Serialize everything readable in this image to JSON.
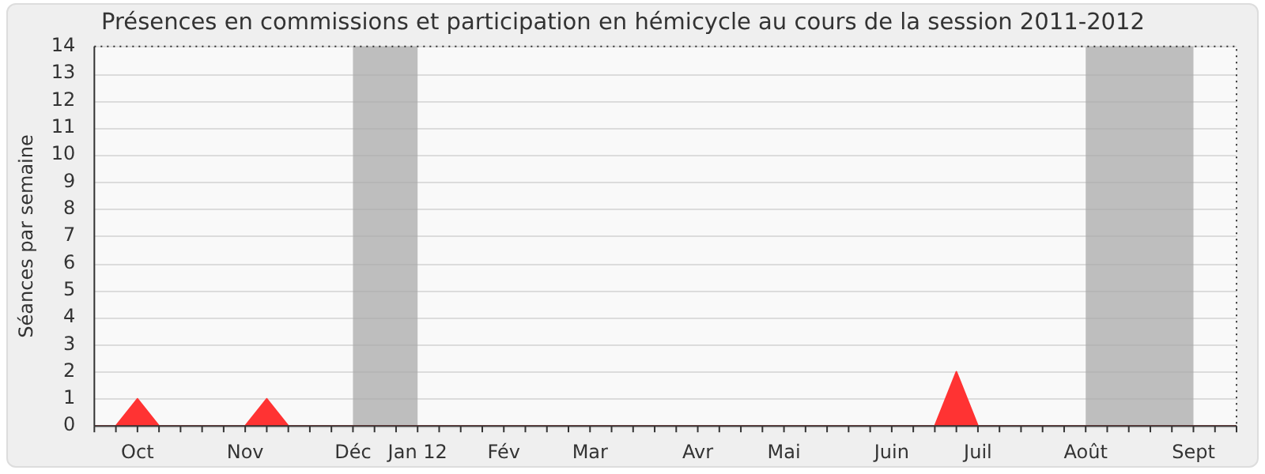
{
  "chart_data": {
    "type": "area",
    "title": "Présences en commissions et participation en hémicycle au cours de la session 2011-2012",
    "ylabel": "Séances par semaine",
    "categories": [
      null,
      null,
      "Oct",
      null,
      null,
      null,
      null,
      "Nov",
      null,
      null,
      null,
      null,
      "Déc",
      null,
      null,
      "Jan 12",
      null,
      null,
      null,
      "Fév",
      null,
      null,
      null,
      "Mar",
      null,
      null,
      null,
      null,
      "Avr",
      null,
      null,
      null,
      "Mai",
      null,
      null,
      null,
      null,
      "Juin",
      null,
      null,
      null,
      "Juil",
      null,
      null,
      null,
      null,
      "Août",
      null,
      null,
      null,
      null,
      "Sept",
      null,
      null
    ],
    "series": [
      {
        "color": "#ff3333",
        "values": [
          0,
          0,
          1,
          0,
          0,
          0,
          0,
          0,
          1,
          0,
          0,
          0,
          0,
          0,
          0,
          0,
          0,
          0,
          0,
          0,
          0,
          0,
          0,
          0,
          0,
          0,
          0,
          0,
          0,
          0,
          0,
          0,
          0,
          0,
          0,
          0,
          0,
          0,
          0,
          0,
          2,
          0,
          0,
          0,
          0,
          0,
          0,
          0,
          0,
          0,
          0,
          0,
          0,
          0
        ]
      }
    ],
    "ylim": [
      0,
      14
    ],
    "yticks": [
      0,
      1,
      2,
      3,
      4,
      5,
      6,
      7,
      8,
      9,
      10,
      11,
      12,
      13,
      14
    ],
    "bands": [
      {
        "axis": "x",
        "from": "Déc",
        "to": "Jan 12",
        "color": "#aaaaaa"
      },
      {
        "axis": "x",
        "from": "Août",
        "to": "Sept",
        "color": "#aaaaaa"
      }
    ],
    "grid": "y",
    "legend": false
  }
}
